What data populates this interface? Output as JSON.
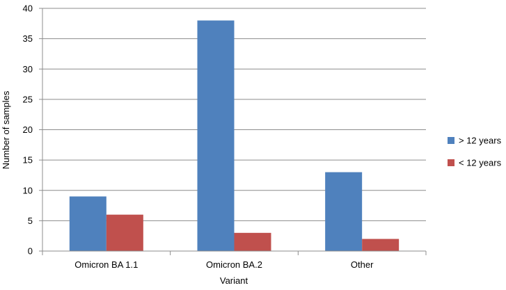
{
  "chart_data": {
    "type": "bar",
    "title": "",
    "xlabel": "Variant",
    "ylabel": "Number of samples",
    "ylim": [
      0,
      40
    ],
    "yticks": [
      0,
      5,
      10,
      15,
      20,
      25,
      30,
      35,
      40
    ],
    "grid": true,
    "legend_position": "right",
    "categories": [
      "Omicron BA 1.1",
      "Omicron BA.2",
      "Other"
    ],
    "series": [
      {
        "name": "> 12 years",
        "values": [
          9,
          38,
          13
        ],
        "color": "#4f81bd"
      },
      {
        "name": "< 12 years",
        "values": [
          6,
          3,
          2
        ],
        "color": "#c0504d"
      }
    ]
  }
}
